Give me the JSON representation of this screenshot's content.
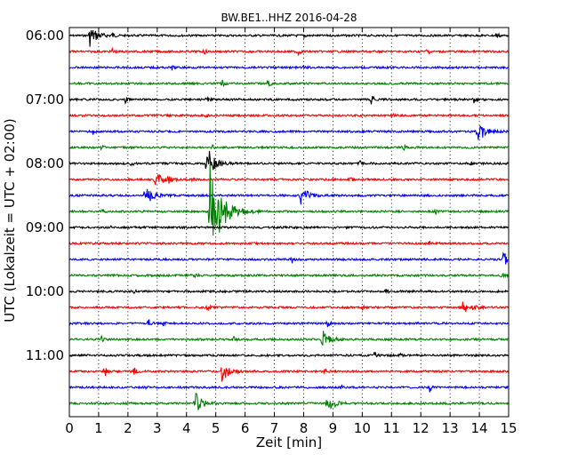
{
  "chart_data": {
    "type": "line",
    "title": "BW.BE1..HHZ 2016-04-28",
    "xlabel": "Zeit  [min]",
    "ylabel": "UTC (Lokalzeit = UTC + 02:00)",
    "xlim": [
      0,
      15
    ],
    "x_ticks": [
      "0",
      "1",
      "2",
      "3",
      "4",
      "5",
      "6",
      "7",
      "8",
      "9",
      "10",
      "11",
      "12",
      "13",
      "14",
      "15"
    ],
    "y_ticks": [
      "06:00",
      "07:00",
      "08:00",
      "09:00",
      "10:00",
      "11:00"
    ],
    "grid": "vertical dotted",
    "trace_colors": [
      "#000000",
      "#ff0000",
      "#0000ff",
      "#008000"
    ],
    "traces": [
      {
        "start": "06:00",
        "events": [
          {
            "min": 0.7,
            "amp": 12
          },
          {
            "min": 1.45,
            "amp": 4
          },
          {
            "min": 8.0,
            "amp": 3
          },
          {
            "min": 14.6,
            "amp": 4
          }
        ]
      },
      {
        "start": "06:15",
        "events": [
          {
            "min": 1.45,
            "amp": 5
          },
          {
            "min": 4.6,
            "amp": 3
          },
          {
            "min": 7.8,
            "amp": 6
          },
          {
            "min": 12.2,
            "amp": 5
          }
        ]
      },
      {
        "start": "06:30",
        "events": [
          {
            "min": 3.5,
            "amp": 3
          },
          {
            "min": 8.0,
            "amp": 3
          }
        ]
      },
      {
        "start": "06:45",
        "events": [
          {
            "min": 5.2,
            "amp": 5
          },
          {
            "min": 6.8,
            "amp": 6
          }
        ]
      },
      {
        "start": "07:00",
        "events": [
          {
            "min": 1.9,
            "amp": 5
          },
          {
            "min": 4.7,
            "amp": 4
          },
          {
            "min": 10.3,
            "amp": 8
          },
          {
            "min": 13.8,
            "amp": 4
          }
        ]
      },
      {
        "start": "07:15",
        "events": [
          {
            "min": 4.7,
            "amp": 4
          },
          {
            "min": 11.0,
            "amp": 3
          }
        ]
      },
      {
        "start": "07:30",
        "events": [
          {
            "min": 0.8,
            "amp": 4
          },
          {
            "min": 13.95,
            "amp": 12
          }
        ]
      },
      {
        "start": "07:45",
        "events": [
          {
            "min": 1.1,
            "amp": 4
          },
          {
            "min": 4.85,
            "amp": 5
          },
          {
            "min": 6.6,
            "amp": 4
          },
          {
            "min": 11.4,
            "amp": 4
          }
        ]
      },
      {
        "start": "08:00",
        "events": [
          {
            "min": 2.1,
            "amp": 4
          },
          {
            "min": 4.7,
            "amp": 20
          },
          {
            "min": 9.9,
            "amp": 4
          },
          {
            "min": 13.7,
            "amp": 4
          }
        ]
      },
      {
        "start": "08:15",
        "events": [
          {
            "min": 2.9,
            "amp": 9
          },
          {
            "min": 3.4,
            "amp": 3
          },
          {
            "min": 4.2,
            "amp": 3
          },
          {
            "min": 9.6,
            "amp": 3
          }
        ]
      },
      {
        "start": "08:30",
        "events": [
          {
            "min": 2.6,
            "amp": 11
          },
          {
            "min": 7.9,
            "amp": 11
          },
          {
            "min": 4.8,
            "amp": 4
          }
        ]
      },
      {
        "start": "08:45",
        "events": [
          {
            "min": 4.8,
            "amp": 60
          },
          {
            "min": 1.1,
            "amp": 3
          },
          {
            "min": 12.5,
            "amp": 3
          }
        ]
      },
      {
        "start": "09:00",
        "events": [
          {
            "min": 1.4,
            "amp": 2
          }
        ]
      },
      {
        "start": "09:15",
        "events": [
          {
            "min": 12.3,
            "amp": 3
          }
        ]
      },
      {
        "start": "09:30",
        "events": [
          {
            "min": 7.6,
            "amp": 4
          },
          {
            "min": 14.8,
            "amp": 12
          }
        ]
      },
      {
        "start": "09:45",
        "events": [
          {
            "min": 4.3,
            "amp": 3
          },
          {
            "min": 14.8,
            "amp": 3
          }
        ]
      },
      {
        "start": "10:00",
        "events": [
          {
            "min": 2.2,
            "amp": 3
          },
          {
            "min": 10.8,
            "amp": 3
          }
        ]
      },
      {
        "start": "10:15",
        "events": [
          {
            "min": 4.7,
            "amp": 6
          },
          {
            "min": 10.0,
            "amp": 3
          },
          {
            "min": 13.4,
            "amp": 11
          }
        ]
      },
      {
        "start": "10:30",
        "events": [
          {
            "min": 2.7,
            "amp": 6
          },
          {
            "min": 3.2,
            "amp": 5
          },
          {
            "min": 8.8,
            "amp": 5
          }
        ]
      },
      {
        "start": "10:45",
        "events": [
          {
            "min": 1.1,
            "amp": 4
          },
          {
            "min": 5.6,
            "amp": 4
          },
          {
            "min": 8.6,
            "amp": 12
          }
        ]
      },
      {
        "start": "11:00",
        "events": [
          {
            "min": 10.4,
            "amp": 5
          },
          {
            "min": 11.3,
            "amp": 3
          }
        ]
      },
      {
        "start": "11:15",
        "events": [
          {
            "min": 1.2,
            "amp": 7
          },
          {
            "min": 2.2,
            "amp": 8
          },
          {
            "min": 5.2,
            "amp": 12
          },
          {
            "min": 8.7,
            "amp": 4
          }
        ]
      },
      {
        "start": "11:30",
        "events": [
          {
            "min": 2.6,
            "amp": 3
          },
          {
            "min": 9.3,
            "amp": 4
          },
          {
            "min": 12.3,
            "amp": 5
          }
        ]
      },
      {
        "start": "11:45",
        "events": [
          {
            "min": 4.3,
            "amp": 12
          },
          {
            "min": 8.8,
            "amp": 10
          }
        ]
      }
    ]
  }
}
